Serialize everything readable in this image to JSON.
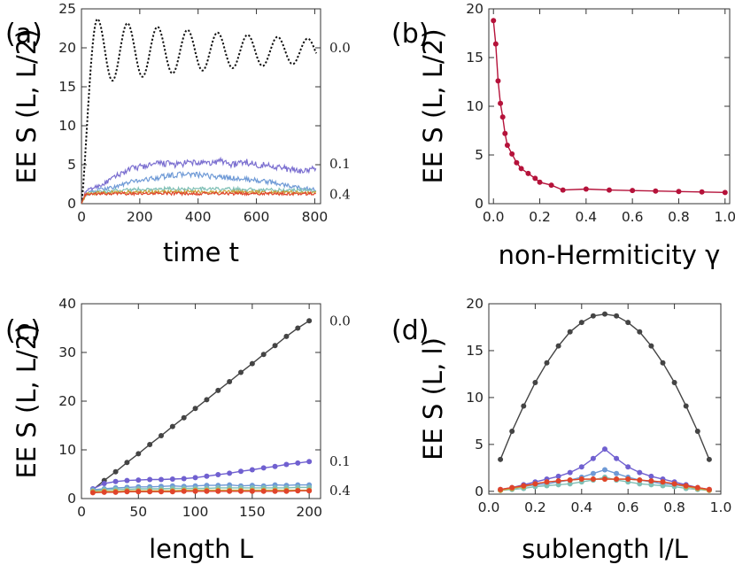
{
  "chart_data": [
    {
      "panel": "(a)",
      "type": "line",
      "xlabel": "time t",
      "ylabel": "EE S (L, L/2)",
      "xlim": [
        0,
        820
      ],
      "ylim": [
        0,
        25
      ],
      "xticks": [
        0,
        200,
        400,
        600,
        800
      ],
      "yticks": [
        0,
        5,
        10,
        15,
        20,
        25
      ],
      "annotations": [
        {
          "text": "0.0",
          "y": 20
        },
        {
          "text": "0.1",
          "y": 5.1
        },
        {
          "text": "0.4",
          "y": 1.2
        }
      ],
      "series": [
        {
          "name": "gamma 0.0",
          "color": "#111111",
          "dashed": true,
          "kind": "osc",
          "base": 19.6,
          "amp": 2.6,
          "period": 103,
          "peak": 23.7,
          "peakT": 55
        },
        {
          "name": "gamma 0.1",
          "color": "#7b6fd0",
          "kind": "noisy",
          "points": [
            [
              0,
              0
            ],
            [
              15,
              1.6
            ],
            [
              40,
              2.0
            ],
            [
              80,
              2.6
            ],
            [
              130,
              3.8
            ],
            [
              180,
              4.6
            ],
            [
              230,
              4.9
            ],
            [
              280,
              5.2
            ],
            [
              330,
              5.0
            ],
            [
              380,
              5.3
            ],
            [
              430,
              5.1
            ],
            [
              480,
              5.5
            ],
            [
              520,
              5.0
            ],
            [
              560,
              5.4
            ],
            [
              600,
              5.0
            ],
            [
              650,
              4.9
            ],
            [
              700,
              4.5
            ],
            [
              740,
              4.2
            ],
            [
              780,
              4.3
            ],
            [
              800,
              4.5
            ]
          ]
        },
        {
          "name": "gamma 0.15",
          "color": "#6f9ad6",
          "kind": "noisy",
          "points": [
            [
              0,
              0
            ],
            [
              15,
              1.3
            ],
            [
              60,
              1.8
            ],
            [
              120,
              2.2
            ],
            [
              180,
              2.9
            ],
            [
              240,
              3.2
            ],
            [
              300,
              3.6
            ],
            [
              360,
              3.8
            ],
            [
              420,
              3.6
            ],
            [
              480,
              3.4
            ],
            [
              540,
              3.2
            ],
            [
              600,
              3.0
            ],
            [
              660,
              2.7
            ],
            [
              720,
              2.2
            ],
            [
              760,
              2.0
            ],
            [
              800,
              1.8
            ]
          ]
        },
        {
          "name": "gamma 0.2",
          "color": "#7fbfb5",
          "kind": "noisy",
          "points": [
            [
              0,
              0
            ],
            [
              15,
              1.2
            ],
            [
              60,
              1.5
            ],
            [
              150,
              1.8
            ],
            [
              300,
              1.9
            ],
            [
              450,
              1.9
            ],
            [
              600,
              1.8
            ],
            [
              800,
              1.7
            ]
          ]
        },
        {
          "name": "gamma 0.3",
          "color": "#c9a43a",
          "kind": "noisy",
          "points": [
            [
              0,
              0
            ],
            [
              15,
              1.2
            ],
            [
              60,
              1.4
            ],
            [
              200,
              1.5
            ],
            [
              400,
              1.5
            ],
            [
              600,
              1.5
            ],
            [
              800,
              1.4
            ]
          ]
        },
        {
          "name": "gamma 0.4",
          "color": "#e0442a",
          "kind": "noisy",
          "points": [
            [
              0,
              0
            ],
            [
              10,
              1.1
            ],
            [
              60,
              1.25
            ],
            [
              200,
              1.3
            ],
            [
              400,
              1.3
            ],
            [
              600,
              1.3
            ],
            [
              800,
              1.3
            ]
          ]
        }
      ]
    },
    {
      "panel": "(b)",
      "type": "line",
      "xlabel": "non-Hermiticity γ",
      "ylabel": "EE S (L, L/2)",
      "xlim": [
        -0.02,
        1.02
      ],
      "ylim": [
        0,
        20
      ],
      "xticks": [
        0.0,
        0.2,
        0.4,
        0.6,
        0.8,
        1.0
      ],
      "yticks": [
        0,
        5,
        10,
        15,
        20
      ],
      "series": [
        {
          "name": "EE vs gamma",
          "color": "#b5123a",
          "markers": true,
          "x": [
            0.0,
            0.01,
            0.02,
            0.03,
            0.04,
            0.05,
            0.06,
            0.08,
            0.1,
            0.12,
            0.15,
            0.18,
            0.2,
            0.25,
            0.3,
            0.4,
            0.5,
            0.6,
            0.7,
            0.8,
            0.9,
            1.0
          ],
          "y": [
            18.8,
            16.4,
            12.6,
            10.3,
            8.9,
            7.2,
            6.0,
            5.1,
            4.2,
            3.6,
            3.1,
            2.6,
            2.2,
            1.9,
            1.4,
            1.5,
            1.4,
            1.35,
            1.3,
            1.25,
            1.2,
            1.15
          ]
        }
      ]
    },
    {
      "panel": "(c)",
      "type": "line",
      "xlabel": "length L",
      "ylabel": "EE S (L, L/2)",
      "xlim": [
        0,
        210
      ],
      "ylim": [
        0,
        40
      ],
      "xticks": [
        0,
        50,
        100,
        150,
        200
      ],
      "yticks": [
        0,
        10,
        20,
        30,
        40
      ],
      "annotations": [
        {
          "text": "0.0",
          "y": 36.5
        },
        {
          "text": "0.1",
          "y": 7.6
        },
        {
          "text": "0.4",
          "y": 1.6
        }
      ],
      "x": [
        10,
        20,
        30,
        40,
        50,
        60,
        70,
        80,
        90,
        100,
        110,
        120,
        130,
        140,
        150,
        160,
        170,
        180,
        190,
        200
      ],
      "series": [
        {
          "name": "gamma 0.0",
          "color": "#444444",
          "values": [
            1.8,
            3.7,
            5.5,
            7.4,
            9.2,
            11.1,
            12.9,
            14.8,
            16.6,
            18.5,
            20.3,
            22.2,
            24.0,
            25.9,
            27.7,
            29.6,
            31.4,
            33.3,
            35.0,
            36.5
          ]
        },
        {
          "name": "gamma 0.1",
          "color": "#7060d0",
          "values": [
            2.0,
            3.1,
            3.5,
            3.7,
            3.8,
            3.9,
            3.9,
            4.0,
            4.1,
            4.3,
            4.6,
            4.9,
            5.2,
            5.6,
            5.9,
            6.3,
            6.6,
            7.0,
            7.3,
            7.6
          ]
        },
        {
          "name": "gamma 0.15",
          "color": "#6f9ad6",
          "values": [
            1.8,
            2.0,
            2.2,
            2.3,
            2.4,
            2.4,
            2.5,
            2.6,
            2.5,
            2.6,
            2.7,
            2.7,
            2.8,
            2.6,
            2.7,
            2.6,
            2.8,
            2.7,
            2.8,
            2.8
          ]
        },
        {
          "name": "gamma 0.2",
          "color": "#7fbfb5",
          "values": [
            1.6,
            1.8,
            1.9,
            1.9,
            2.0,
            2.0,
            2.0,
            2.1,
            2.1,
            2.1,
            2.1,
            2.2,
            2.2,
            2.2,
            2.2,
            2.2,
            2.2,
            2.2,
            2.3,
            2.3
          ]
        },
        {
          "name": "gamma 0.3",
          "color": "#c9a43a",
          "values": [
            1.4,
            1.5,
            1.5,
            1.6,
            1.6,
            1.6,
            1.6,
            1.6,
            1.7,
            1.7,
            1.7,
            1.7,
            1.7,
            1.7,
            1.7,
            1.7,
            1.7,
            1.7,
            1.7,
            1.7
          ]
        },
        {
          "name": "gamma 0.4",
          "color": "#e0442a",
          "values": [
            1.2,
            1.3,
            1.3,
            1.4,
            1.4,
            1.4,
            1.4,
            1.4,
            1.5,
            1.5,
            1.5,
            1.5,
            1.5,
            1.5,
            1.5,
            1.5,
            1.5,
            1.5,
            1.6,
            1.6
          ]
        }
      ]
    },
    {
      "panel": "(d)",
      "type": "line",
      "xlabel": "sublength l/L",
      "ylabel": "EE S (L, l)",
      "xlim": [
        0.0,
        1.0
      ],
      "ylim": [
        -0.3,
        20
      ],
      "xticks": [
        0.0,
        0.2,
        0.4,
        0.6,
        0.8,
        1.0
      ],
      "yticks": [
        0,
        5,
        10,
        15,
        20
      ],
      "x": [
        0.05,
        0.1,
        0.15,
        0.2,
        0.25,
        0.3,
        0.35,
        0.4,
        0.45,
        0.5,
        0.55,
        0.6,
        0.65,
        0.7,
        0.75,
        0.8,
        0.85,
        0.9,
        0.95
      ],
      "series": [
        {
          "name": "gamma 0.0",
          "color": "#444444",
          "values": [
            3.4,
            6.4,
            9.1,
            11.6,
            13.7,
            15.5,
            17.0,
            18.0,
            18.7,
            18.9,
            18.7,
            18.0,
            17.0,
            15.5,
            13.7,
            11.6,
            9.1,
            6.4,
            3.4
          ]
        },
        {
          "name": "gamma 0.1",
          "color": "#7060d0",
          "values": [
            0.2,
            0.4,
            0.7,
            1.0,
            1.3,
            1.6,
            2.0,
            2.6,
            3.5,
            4.5,
            3.5,
            2.6,
            2.0,
            1.6,
            1.3,
            1.0,
            0.7,
            0.4,
            0.2
          ]
        },
        {
          "name": "gamma 0.15",
          "color": "#6f9ad6",
          "values": [
            0.1,
            0.3,
            0.5,
            0.7,
            0.8,
            1.0,
            1.2,
            1.5,
            1.9,
            2.3,
            1.9,
            1.5,
            1.2,
            1.0,
            0.8,
            0.7,
            0.5,
            0.3,
            0.1
          ]
        },
        {
          "name": "gamma 0.2",
          "color": "#7fbfb5",
          "values": [
            0.1,
            0.2,
            0.3,
            0.5,
            0.6,
            0.7,
            0.8,
            1.0,
            1.2,
            1.5,
            1.2,
            1.0,
            0.8,
            0.7,
            0.6,
            0.5,
            0.3,
            0.2,
            0.1
          ]
        },
        {
          "name": "gamma 0.3",
          "color": "#c9a43a",
          "values": [
            0.1,
            0.3,
            0.5,
            0.8,
            1.0,
            1.1,
            1.2,
            1.3,
            1.3,
            1.3,
            1.3,
            1.3,
            1.2,
            1.1,
            1.0,
            0.8,
            0.5,
            0.3,
            0.1
          ]
        },
        {
          "name": "gamma 0.4",
          "color": "#e0442a",
          "values": [
            0.2,
            0.4,
            0.6,
            0.8,
            1.0,
            1.1,
            1.2,
            1.3,
            1.3,
            1.3,
            1.3,
            1.3,
            1.2,
            1.1,
            1.0,
            0.8,
            0.6,
            0.4,
            0.2
          ]
        }
      ]
    }
  ]
}
